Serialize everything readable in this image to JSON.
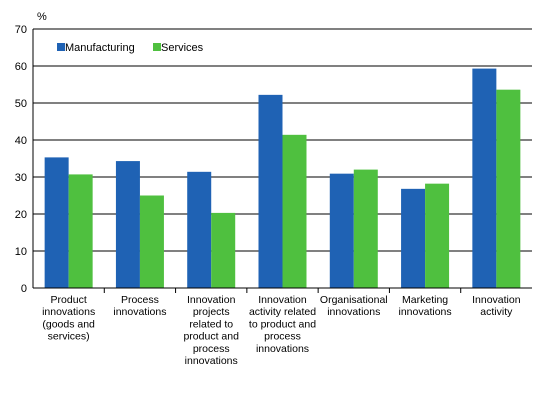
{
  "chart_data": {
    "type": "bar",
    "ylabel": "%",
    "ylim": [
      0,
      70
    ],
    "yticks": [
      0,
      10,
      20,
      30,
      40,
      50,
      60,
      70
    ],
    "grid": true,
    "legend_position": "top-left",
    "categories": [
      [
        "Product",
        "innovations",
        "(goods and",
        "services)"
      ],
      [
        "Process",
        "innovations"
      ],
      [
        "Innovation",
        "projects",
        "related to",
        "product and",
        "process",
        "innovations"
      ],
      [
        "Innovation",
        "activity related",
        "to product and",
        "process",
        "innovations"
      ],
      [
        "Organisational",
        "innovations"
      ],
      [
        "Marketing",
        "innovations"
      ],
      [
        "Innovation",
        "activity"
      ]
    ],
    "series": [
      {
        "name": "Manufacturing",
        "color": "#1f62b4",
        "values": [
          35.3,
          34.3,
          31.4,
          52.2,
          30.9,
          26.8,
          59.3
        ]
      },
      {
        "name": "Services",
        "color": "#4fc03f",
        "values": [
          30.7,
          25.0,
          20.3,
          41.4,
          32.0,
          28.2,
          53.6
        ]
      }
    ]
  }
}
